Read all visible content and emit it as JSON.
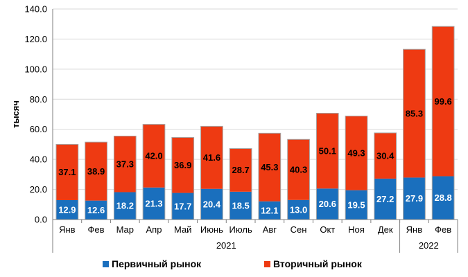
{
  "chart_data": {
    "type": "bar",
    "stacked": true,
    "ylabel": "тысяч",
    "ylim": [
      0,
      140
    ],
    "yticks": [
      "0.0",
      "20.0",
      "40.0",
      "60.0",
      "80.0",
      "100.0",
      "120.0",
      "140.0"
    ],
    "grid": true,
    "legend_position": "bottom",
    "categories": [
      "Янв",
      "Фев",
      "Мар",
      "Апр",
      "Май",
      "Июнь",
      "Июль",
      "Авг",
      "Сен",
      "Окт",
      "Ноя",
      "Дек",
      "Янв",
      "Фев"
    ],
    "year_groups": [
      {
        "label": "2021",
        "from": 0,
        "to": 11
      },
      {
        "label": "2022",
        "from": 12,
        "to": 13
      }
    ],
    "series": [
      {
        "name": "Первичный рынок",
        "color": "#1a6fbd",
        "label_color": "#ffffff",
        "values": [
          12.9,
          12.6,
          18.2,
          21.3,
          17.7,
          20.4,
          18.5,
          12.1,
          13.0,
          20.6,
          19.5,
          27.2,
          27.9,
          28.8
        ]
      },
      {
        "name": "Вторичный рынок",
        "color": "#ee3a12",
        "label_color": "#000000",
        "values": [
          37.1,
          38.9,
          37.3,
          42.0,
          36.9,
          41.6,
          28.7,
          45.3,
          40.3,
          50.1,
          49.3,
          30.4,
          85.3,
          99.6
        ]
      }
    ]
  }
}
